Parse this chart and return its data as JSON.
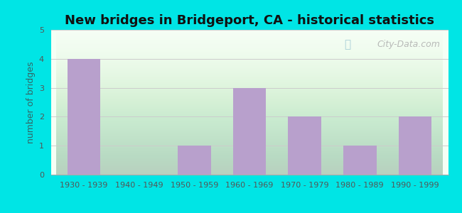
{
  "title": "New bridges in Bridgeport, CA - historical statistics",
  "categories": [
    "1930 - 1939",
    "1940 - 1949",
    "1950 - 1959",
    "1960 - 1969",
    "1970 - 1979",
    "1980 - 1989",
    "1990 - 1999"
  ],
  "values": [
    4,
    0,
    1,
    3,
    2,
    1,
    2
  ],
  "bar_color": "#b8a0cc",
  "ylabel": "number of bridges",
  "ylim": [
    0,
    5
  ],
  "yticks": [
    0,
    1,
    2,
    3,
    4,
    5
  ],
  "figure_bg": "#00e5e5",
  "plot_bg_top": "#f5fff5",
  "plot_bg_bottom": "#d8f0d0",
  "title_fontsize": 13,
  "axis_label_fontsize": 9,
  "tick_fontsize": 8,
  "watermark_text": "City-Data.com",
  "bar_width": 0.6,
  "grid_color": "#cccccc",
  "spine_color": "#aaaaaa",
  "tick_color": "#555555",
  "ylabel_color": "#336666"
}
